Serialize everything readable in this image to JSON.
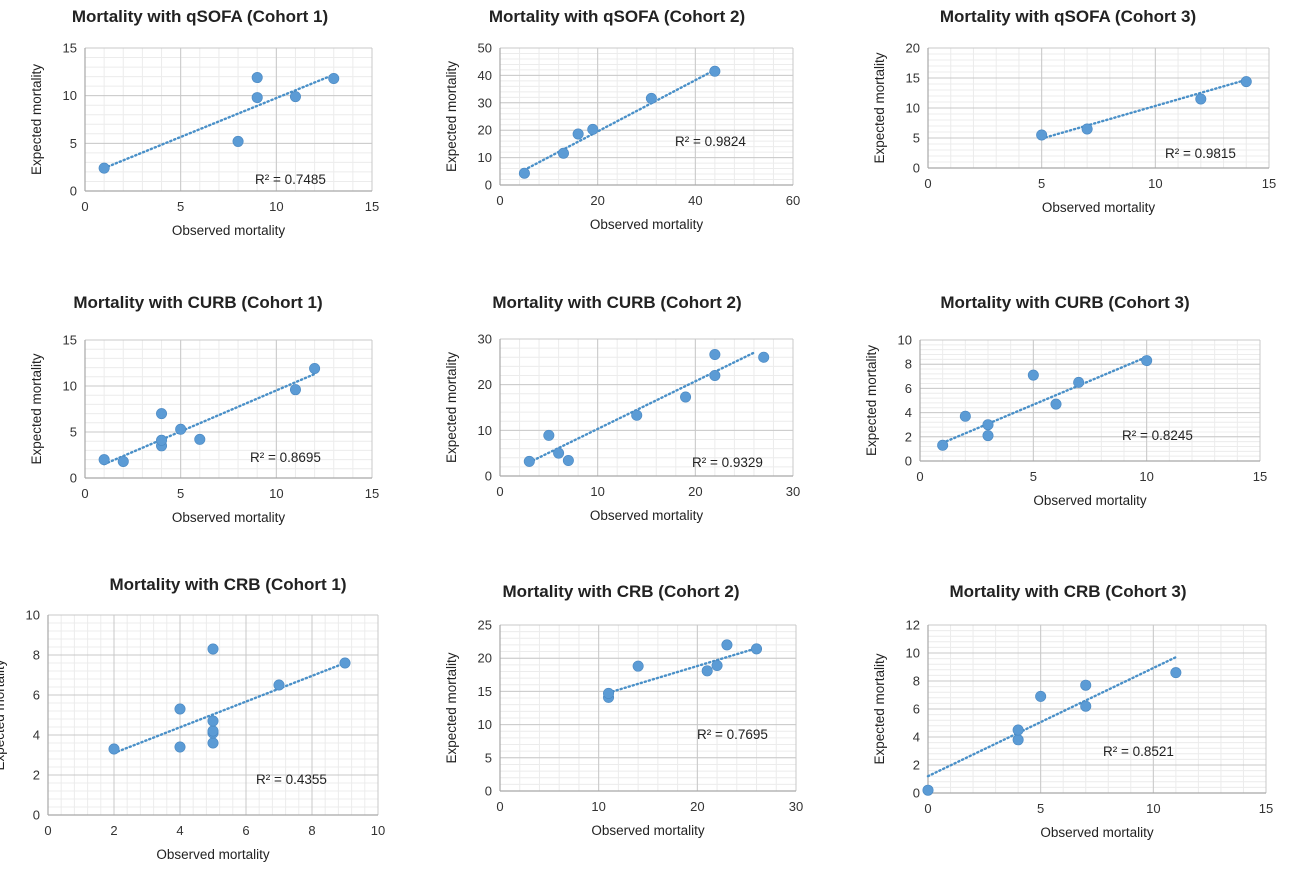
{
  "chart_data": [
    {
      "type": "scatter",
      "title": "Mortality with qSOFA (Cohort 1)",
      "xlabel": "Observed mortality",
      "ylabel": "Expected mortality",
      "xlim": [
        0,
        15
      ],
      "xticks": [
        0,
        5,
        10,
        15
      ],
      "ylim": [
        0,
        15
      ],
      "yticks": [
        0,
        5,
        10,
        15
      ],
      "grid": true,
      "points": [
        [
          1,
          2.4
        ],
        [
          8,
          5.2
        ],
        [
          9,
          9.8
        ],
        [
          9,
          11.9
        ],
        [
          11,
          9.9
        ],
        [
          13,
          11.8
        ]
      ],
      "trendline": {
        "style": "dotted",
        "from": [
          1,
          2.4
        ],
        "to": [
          13,
          12.2
        ]
      },
      "annotation": "R² = 0.7485",
      "colors": {
        "point": "#5b9bd5",
        "trend": "#4a90c8",
        "grid": "#e3e3e3"
      }
    },
    {
      "type": "scatter",
      "title": "Mortality with qSOFA (Cohort 2)",
      "xlabel": "Observed mortality",
      "ylabel": "Expected mortality",
      "xlim": [
        0,
        60
      ],
      "xticks": [
        0,
        20,
        40,
        60
      ],
      "ylim": [
        0,
        50
      ],
      "yticks": [
        0,
        10,
        20,
        30,
        40,
        50
      ],
      "grid": true,
      "points": [
        [
          5,
          4.3
        ],
        [
          13,
          11.6
        ],
        [
          16,
          18.6
        ],
        [
          19,
          20.3
        ],
        [
          31,
          31.6
        ],
        [
          44,
          41.5
        ]
      ],
      "trendline": {
        "style": "dotted",
        "from": [
          5,
          5.5
        ],
        "to": [
          44,
          42
        ]
      },
      "annotation": "R² = 0.9824",
      "colors": {
        "point": "#5b9bd5",
        "trend": "#4a90c8",
        "grid": "#e3e3e3"
      }
    },
    {
      "type": "scatter",
      "title": "Mortality with qSOFA (Cohort 3)",
      "xlabel": "Observed mortality",
      "ylabel": "Expected mortality",
      "xlim": [
        0,
        15
      ],
      "xticks": [
        0,
        5,
        10,
        15
      ],
      "ylim": [
        0,
        20
      ],
      "yticks": [
        0,
        5,
        10,
        15,
        20
      ],
      "grid": true,
      "points": [
        [
          5,
          5.5
        ],
        [
          7,
          6.5
        ],
        [
          12,
          11.5
        ],
        [
          14,
          14.4
        ]
      ],
      "trendline": {
        "style": "dotted",
        "from": [
          5,
          4.9
        ],
        "to": [
          14,
          14.7
        ]
      },
      "annotation": "R² = 0.9815",
      "colors": {
        "point": "#5b9bd5",
        "trend": "#4a90c8",
        "grid": "#e3e3e3"
      }
    },
    {
      "type": "scatter",
      "title": "Mortality with CURB (Cohort 1)",
      "xlabel": "Observed mortality",
      "ylabel": "Expected mortality",
      "xlim": [
        0,
        15
      ],
      "xticks": [
        0,
        5,
        10,
        15
      ],
      "ylim": [
        0,
        15
      ],
      "yticks": [
        0,
        5,
        10,
        15
      ],
      "grid": true,
      "points": [
        [
          1,
          2.0
        ],
        [
          2,
          1.8
        ],
        [
          4,
          3.5
        ],
        [
          4,
          4.1
        ],
        [
          4,
          7.0
        ],
        [
          5,
          5.3
        ],
        [
          6,
          4.2
        ],
        [
          11,
          9.6
        ],
        [
          12,
          11.9
        ]
      ],
      "trendline": {
        "style": "dotted",
        "from": [
          1,
          1.5
        ],
        "to": [
          12,
          11.3
        ]
      },
      "annotation": "R² = 0.8695",
      "colors": {
        "point": "#5b9bd5",
        "trend": "#4a90c8",
        "grid": "#e3e3e3"
      }
    },
    {
      "type": "scatter",
      "title": "Mortality with CURB (Cohort 2)",
      "xlabel": "Observed mortality",
      "ylabel": "Expected mortality",
      "xlim": [
        0,
        30
      ],
      "xticks": [
        0,
        10,
        20,
        30
      ],
      "ylim": [
        0,
        30
      ],
      "yticks": [
        0,
        10,
        20,
        30
      ],
      "grid": true,
      "points": [
        [
          3,
          3.2
        ],
        [
          5,
          8.9
        ],
        [
          6,
          5.0
        ],
        [
          7,
          3.4
        ],
        [
          14,
          13.3
        ],
        [
          19,
          17.3
        ],
        [
          22,
          22.0
        ],
        [
          22,
          26.6
        ],
        [
          27,
          26.0
        ]
      ],
      "trendline": {
        "style": "dotted",
        "from": [
          3,
          3.0
        ],
        "to": [
          26,
          27.0
        ]
      },
      "annotation": "R² = 0.9329",
      "colors": {
        "point": "#5b9bd5",
        "trend": "#4a90c8",
        "grid": "#e3e3e3"
      }
    },
    {
      "type": "scatter",
      "title": "Mortality with CURB (Cohort 3)",
      "xlabel": "Observed mortality",
      "ylabel": "Expected mortality",
      "xlim": [
        0,
        15
      ],
      "xticks": [
        0,
        5,
        10,
        15
      ],
      "ylim": [
        0,
        10
      ],
      "yticks": [
        0,
        2,
        4,
        6,
        8,
        10
      ],
      "grid": true,
      "points": [
        [
          1,
          1.3
        ],
        [
          2,
          3.7
        ],
        [
          3,
          2.1
        ],
        [
          3,
          3.0
        ],
        [
          5,
          7.1
        ],
        [
          6,
          4.7
        ],
        [
          7,
          6.5
        ],
        [
          10,
          8.3
        ]
      ],
      "trendline": {
        "style": "dotted",
        "from": [
          1,
          1.5
        ],
        "to": [
          10,
          8.6
        ]
      },
      "annotation": "R² = 0.8245",
      "colors": {
        "point": "#5b9bd5",
        "trend": "#4a90c8",
        "grid": "#e3e3e3"
      }
    },
    {
      "type": "scatter",
      "title": "Mortality with CRB (Cohort 1)",
      "xlabel": "Observed mortality",
      "ylabel": "Expected mortality",
      "xlim": [
        0,
        10
      ],
      "xticks": [
        0,
        2,
        4,
        6,
        8,
        10
      ],
      "ylim": [
        0,
        10
      ],
      "yticks": [
        0,
        2,
        4,
        6,
        8,
        10
      ],
      "grid": true,
      "points": [
        [
          2,
          3.3
        ],
        [
          4,
          3.4
        ],
        [
          4,
          5.3
        ],
        [
          5,
          3.6
        ],
        [
          5,
          4.1
        ],
        [
          5,
          4.2
        ],
        [
          5,
          4.7
        ],
        [
          5,
          8.3
        ],
        [
          7,
          6.5
        ],
        [
          9,
          7.6
        ]
      ],
      "trendline": {
        "style": "dotted",
        "from": [
          2,
          3.1
        ],
        "to": [
          9,
          7.6
        ]
      },
      "annotation": "R² = 0.4355",
      "colors": {
        "point": "#5b9bd5",
        "trend": "#4a90c8",
        "grid": "#e3e3e3"
      }
    },
    {
      "type": "scatter",
      "title": "Mortality with CRB (Cohort 2)",
      "xlabel": "Observed mortality",
      "ylabel": "Expected mortality",
      "xlim": [
        0,
        30
      ],
      "xticks": [
        0,
        10,
        20,
        30
      ],
      "ylim": [
        0,
        25
      ],
      "yticks": [
        0,
        5,
        10,
        15,
        20,
        25
      ],
      "grid": true,
      "points": [
        [
          11,
          14.1
        ],
        [
          11,
          14.7
        ],
        [
          14,
          18.8
        ],
        [
          21,
          18.1
        ],
        [
          22,
          18.9
        ],
        [
          23,
          22.0
        ],
        [
          26,
          21.4
        ]
      ],
      "trendline": {
        "style": "dotted",
        "from": [
          11,
          14.8
        ],
        "to": [
          26,
          21.5
        ]
      },
      "annotation": "R² = 0.7695",
      "colors": {
        "point": "#5b9bd5",
        "trend": "#4a90c8",
        "grid": "#e3e3e3"
      }
    },
    {
      "type": "scatter",
      "title": "Mortality with CRB (Cohort 3)",
      "xlabel": "Observed mortality",
      "ylabel": "Expected mortality",
      "xlim": [
        0,
        15
      ],
      "xticks": [
        0,
        5,
        10,
        15
      ],
      "ylim": [
        0,
        12
      ],
      "yticks": [
        0,
        2,
        4,
        6,
        8,
        10,
        12
      ],
      "grid": true,
      "points": [
        [
          0,
          0.2
        ],
        [
          4,
          3.8
        ],
        [
          4,
          4.5
        ],
        [
          5,
          6.9
        ],
        [
          7,
          6.2
        ],
        [
          7,
          7.7
        ],
        [
          11,
          8.6
        ]
      ],
      "trendline": {
        "style": "dotted",
        "from": [
          0,
          1.2
        ],
        "to": [
          11,
          9.7
        ]
      },
      "annotation": "R² = 0.8521",
      "colors": {
        "point": "#5b9bd5",
        "trend": "#4a90c8",
        "grid": "#e3e3e3"
      }
    }
  ]
}
